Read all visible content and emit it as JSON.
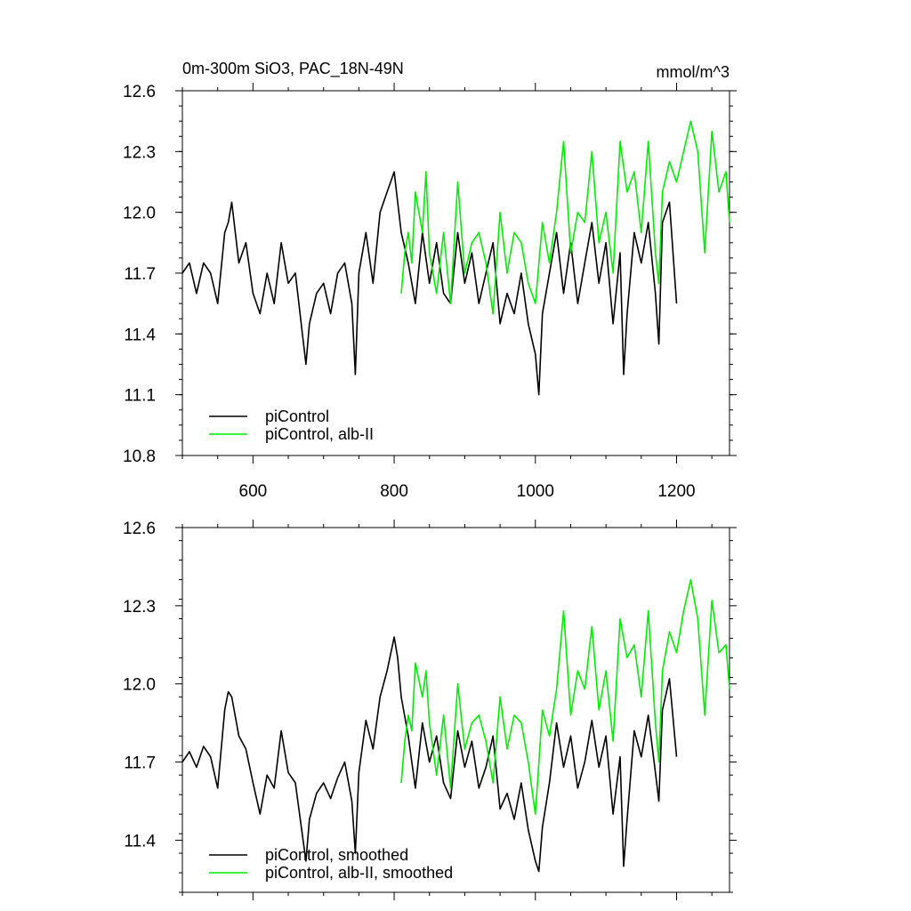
{
  "chart_data": [
    {
      "type": "line",
      "title": "0m-300m SiO3, PAC_18N-49N",
      "units_label": "mmol/m^3",
      "xlim": [
        500,
        1275
      ],
      "ylim": [
        10.8,
        12.6
      ],
      "xticks": [
        600,
        800,
        1000,
        1200
      ],
      "xtick_labels": [
        "600",
        "800",
        "1000",
        "1200"
      ],
      "yticks": [
        10.8,
        11.1,
        11.4,
        11.7,
        12.0,
        12.3,
        12.6
      ],
      "ytick_labels": [
        "10.8",
        "11.1",
        "11.4",
        "11.7",
        "12.0",
        "12.3",
        "12.6"
      ],
      "legend_position": "bottom-left",
      "series": [
        {
          "name": "piControl",
          "color": "#000000",
          "x": [
            500,
            510,
            520,
            530,
            540,
            550,
            560,
            565,
            570,
            580,
            590,
            600,
            610,
            620,
            630,
            640,
            650,
            660,
            670,
            675,
            680,
            690,
            700,
            710,
            720,
            730,
            740,
            745,
            750,
            760,
            770,
            780,
            790,
            800,
            805,
            810,
            820,
            830,
            840,
            850,
            860,
            870,
            880,
            890,
            900,
            910,
            920,
            930,
            940,
            950,
            960,
            970,
            980,
            990,
            1000,
            1005,
            1010,
            1020,
            1030,
            1040,
            1050,
            1060,
            1070,
            1080,
            1090,
            1100,
            1110,
            1120,
            1125,
            1130,
            1140,
            1150,
            1160,
            1170,
            1175,
            1180,
            1190,
            1200
          ],
          "values": [
            11.7,
            11.75,
            11.6,
            11.75,
            11.7,
            11.55,
            11.9,
            11.95,
            12.05,
            11.75,
            11.85,
            11.6,
            11.5,
            11.7,
            11.55,
            11.85,
            11.65,
            11.7,
            11.4,
            11.25,
            11.45,
            11.6,
            11.65,
            11.5,
            11.7,
            11.75,
            11.55,
            11.2,
            11.7,
            11.9,
            11.65,
            12.0,
            12.1,
            12.2,
            12.05,
            11.9,
            11.75,
            11.55,
            11.9,
            11.65,
            11.85,
            11.6,
            11.55,
            11.9,
            11.65,
            11.8,
            11.55,
            11.7,
            11.85,
            11.45,
            11.6,
            11.5,
            11.7,
            11.45,
            11.3,
            11.1,
            11.5,
            11.7,
            11.9,
            11.6,
            11.85,
            11.55,
            11.75,
            11.95,
            11.65,
            11.85,
            11.45,
            11.8,
            11.2,
            11.5,
            11.9,
            11.75,
            11.95,
            11.6,
            11.35,
            11.95,
            12.05,
            11.55
          ]
        },
        {
          "name": "piControl, alb-II",
          "color": "#00ee00",
          "x": [
            810,
            815,
            820,
            825,
            830,
            840,
            845,
            850,
            860,
            870,
            880,
            890,
            900,
            910,
            920,
            930,
            940,
            950,
            960,
            970,
            980,
            990,
            1000,
            1010,
            1020,
            1030,
            1040,
            1050,
            1060,
            1070,
            1080,
            1090,
            1100,
            1110,
            1120,
            1130,
            1140,
            1150,
            1160,
            1170,
            1175,
            1180,
            1190,
            1200,
            1210,
            1220,
            1230,
            1240,
            1250,
            1260,
            1270,
            1275
          ],
          "values": [
            11.6,
            11.8,
            11.9,
            11.75,
            12.1,
            11.9,
            12.2,
            11.8,
            11.6,
            11.9,
            11.55,
            12.15,
            11.7,
            11.85,
            11.9,
            11.75,
            11.5,
            12.0,
            11.7,
            11.9,
            11.85,
            11.65,
            11.55,
            11.95,
            11.75,
            12.0,
            12.35,
            11.8,
            12.0,
            11.95,
            12.3,
            11.85,
            12.0,
            11.7,
            12.35,
            12.1,
            12.2,
            11.9,
            12.35,
            11.8,
            11.65,
            12.1,
            12.25,
            12.15,
            12.3,
            12.45,
            12.3,
            11.8,
            12.4,
            12.1,
            12.2,
            11.95
          ]
        }
      ]
    },
    {
      "type": "line",
      "title": "",
      "xlim": [
        500,
        1275
      ],
      "ylim": [
        11.2,
        12.6
      ],
      "yticks": [
        11.4,
        11.7,
        12.0,
        12.3,
        12.6
      ],
      "ytick_labels": [
        "11.4",
        "11.7",
        "12.0",
        "12.3",
        "12.6"
      ],
      "legend_position": "bottom-left",
      "series": [
        {
          "name": "piControl, smoothed",
          "color": "#000000",
          "x": [
            500,
            510,
            520,
            530,
            540,
            550,
            560,
            565,
            570,
            580,
            590,
            600,
            610,
            620,
            630,
            640,
            650,
            660,
            670,
            675,
            680,
            690,
            700,
            710,
            720,
            730,
            740,
            745,
            750,
            760,
            770,
            780,
            790,
            800,
            805,
            810,
            820,
            830,
            840,
            850,
            860,
            870,
            880,
            890,
            900,
            910,
            920,
            930,
            940,
            950,
            960,
            970,
            980,
            990,
            1000,
            1005,
            1010,
            1020,
            1030,
            1040,
            1050,
            1060,
            1070,
            1080,
            1090,
            1100,
            1110,
            1120,
            1125,
            1130,
            1140,
            1150,
            1160,
            1170,
            1175,
            1180,
            1190,
            1200
          ],
          "values": [
            11.7,
            11.74,
            11.68,
            11.76,
            11.72,
            11.6,
            11.9,
            11.97,
            11.95,
            11.8,
            11.75,
            11.62,
            11.5,
            11.65,
            11.6,
            11.82,
            11.66,
            11.62,
            11.42,
            11.32,
            11.48,
            11.58,
            11.62,
            11.56,
            11.64,
            11.7,
            11.55,
            11.35,
            11.66,
            11.86,
            11.75,
            11.95,
            12.05,
            12.18,
            12.1,
            11.95,
            11.8,
            11.6,
            11.85,
            11.7,
            11.8,
            11.62,
            11.56,
            11.82,
            11.68,
            11.78,
            11.6,
            11.68,
            11.8,
            11.52,
            11.58,
            11.48,
            11.62,
            11.44,
            11.32,
            11.28,
            11.45,
            11.62,
            11.85,
            11.68,
            11.8,
            11.6,
            11.7,
            11.86,
            11.68,
            11.8,
            11.5,
            11.72,
            11.3,
            11.48,
            11.82,
            11.72,
            11.88,
            11.66,
            11.55,
            11.9,
            12.02,
            11.72
          ]
        },
        {
          "name": "piControl, alb-II, smoothed",
          "color": "#00ee00",
          "x": [
            810,
            815,
            820,
            825,
            830,
            840,
            845,
            850,
            860,
            870,
            880,
            890,
            900,
            910,
            920,
            930,
            940,
            950,
            960,
            970,
            980,
            990,
            1000,
            1010,
            1020,
            1030,
            1040,
            1050,
            1060,
            1070,
            1080,
            1090,
            1100,
            1110,
            1120,
            1130,
            1140,
            1150,
            1160,
            1170,
            1175,
            1180,
            1190,
            1200,
            1210,
            1220,
            1230,
            1240,
            1250,
            1260,
            1270,
            1275
          ],
          "values": [
            11.62,
            11.78,
            11.88,
            11.82,
            12.08,
            11.95,
            12.05,
            11.85,
            11.65,
            11.88,
            11.6,
            12.0,
            11.75,
            11.85,
            11.88,
            11.78,
            11.62,
            11.95,
            11.75,
            11.88,
            11.85,
            11.7,
            11.5,
            11.9,
            11.8,
            11.98,
            12.28,
            11.88,
            12.05,
            11.98,
            12.22,
            11.9,
            12.05,
            11.78,
            12.25,
            12.1,
            12.15,
            11.95,
            12.28,
            11.85,
            11.7,
            12.05,
            12.2,
            12.12,
            12.28,
            12.4,
            12.25,
            11.88,
            12.32,
            12.12,
            12.15,
            11.98
          ]
        }
      ]
    }
  ]
}
